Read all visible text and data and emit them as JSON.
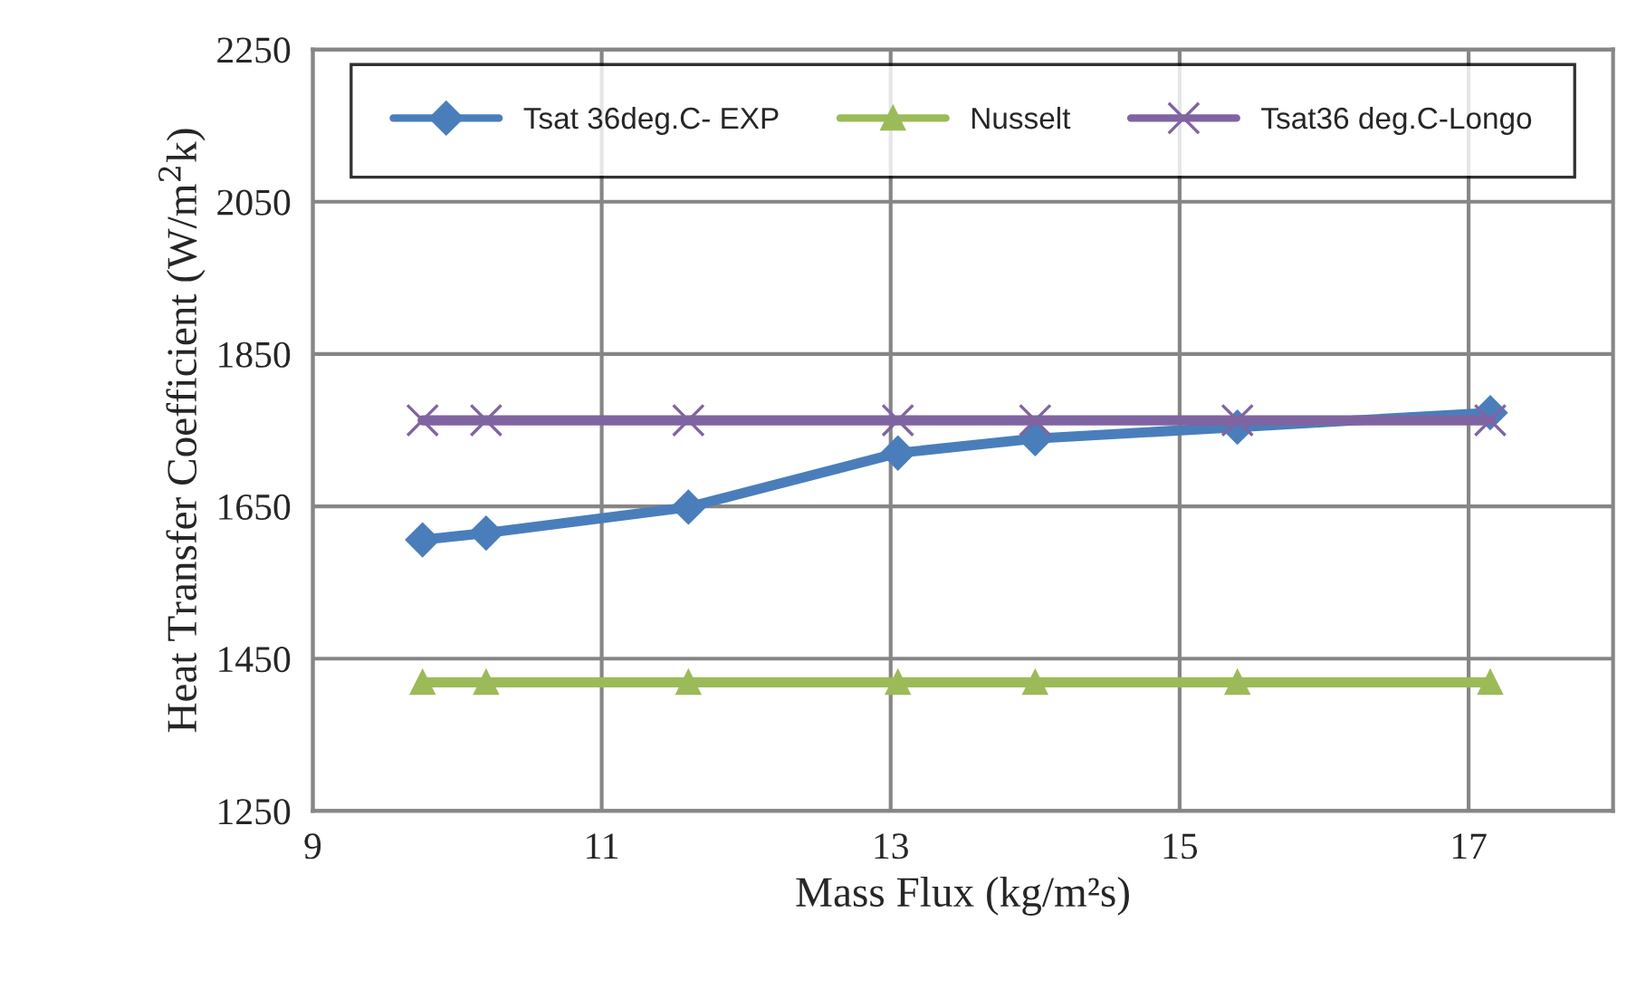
{
  "chart_data": {
    "type": "line",
    "xlabel": "Mass Flux (kg/m²s)",
    "ylabel": "Heat Transfer Coefficient (W/m$^{2}$k)",
    "xlim": [
      9,
      18
    ],
    "xticks": [
      9,
      11,
      13,
      15,
      17
    ],
    "ylim": [
      1250,
      2250
    ],
    "yticks": [
      1250,
      1450,
      1650,
      1850,
      2050,
      2250
    ],
    "grid": true,
    "legend": "top",
    "series": [
      {
        "name": "Tsat 36deg.C- EXP",
        "color": "#4a7ebb",
        "marker": "diamond",
        "x": [
          9.76,
          10.2,
          11.6,
          13.05,
          14.0,
          15.4,
          17.15
        ],
        "values": [
          1606,
          1615,
          1649,
          1720,
          1739,
          1754,
          1773
        ]
      },
      {
        "name": "Nusselt",
        "color": "#9bbb59",
        "marker": "triangle",
        "x": [
          9.76,
          10.2,
          11.6,
          13.05,
          14.0,
          15.4,
          17.15
        ],
        "values": [
          1419,
          1419,
          1419,
          1419,
          1419,
          1419,
          1419
        ]
      },
      {
        "name": "Tsat36 deg.C-Longo",
        "color": "#8064a2",
        "marker": "cross",
        "x": [
          9.76,
          10.2,
          11.6,
          13.05,
          14.0,
          15.4,
          17.15
        ],
        "values": [
          1763,
          1763,
          1763,
          1763,
          1763,
          1763,
          1763
        ]
      }
    ]
  }
}
